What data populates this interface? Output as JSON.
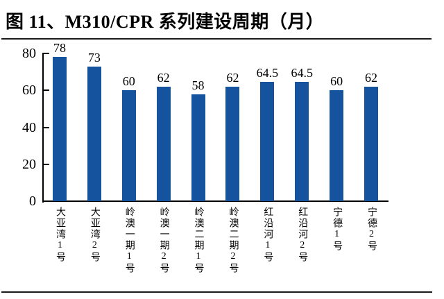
{
  "chart_data": {
    "type": "bar",
    "title": "图 11、M310/CPR 系列建设周期（月）",
    "categories": [
      "大亚湾1号",
      "大亚湾2号",
      "岭澳一期1号",
      "岭澳一期2号",
      "岭澳二期1号",
      "岭澳二期2号",
      "红沿河1号",
      "红沿河2号",
      "宁德1号",
      "宁德2号"
    ],
    "values": [
      78,
      73,
      60,
      62,
      58,
      62,
      64.5,
      64.5,
      60,
      62
    ],
    "ylim": [
      0,
      80
    ],
    "yticks": [
      0,
      20,
      40,
      60,
      80
    ],
    "xlabel": "",
    "ylabel": "",
    "grid": false,
    "legend": false,
    "legend_position": "none",
    "bar_color": "#15539E",
    "axis_color": "#000000",
    "text_color": "#000000",
    "rule_color": "#1a1a1a"
  }
}
